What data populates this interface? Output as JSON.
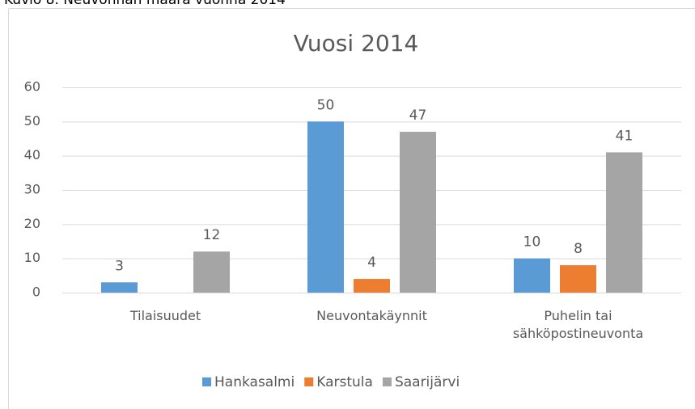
{
  "caption": "Kuvio 8. Neuvonnan määrä vuonna 2014",
  "chart_data": {
    "type": "bar",
    "title": "Vuosi 2014",
    "categories": [
      "Tilaisuudet",
      "Neuvontakäynnit",
      "Puhelin tai sähköpostineuvonta"
    ],
    "series": [
      {
        "name": "Hankasalmi",
        "color": "#5b9bd5",
        "values": [
          3,
          50,
          10
        ]
      },
      {
        "name": "Karstula",
        "color": "#ed7d31",
        "values": [
          null,
          4,
          8
        ]
      },
      {
        "name": "Saarijärvi",
        "color": "#a5a5a5",
        "values": [
          12,
          47,
          41
        ]
      }
    ],
    "ylim": [
      0,
      60
    ],
    "yticks": [
      0,
      10,
      20,
      30,
      40,
      50,
      60
    ],
    "grid": true,
    "legend": "bottom",
    "data_labels": true
  }
}
